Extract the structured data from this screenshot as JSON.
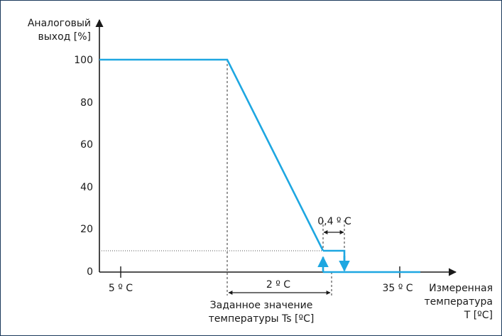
{
  "chart_data": {
    "type": "line",
    "ylabel": [
      "Аналоговый",
      "выход [%]"
    ],
    "xlabel": [
      "Измеренная",
      "температура",
      "Т [ºC]"
    ],
    "yticks": [
      "100",
      "80",
      "60",
      "40",
      "20",
      "0"
    ],
    "ytick_values": [
      100,
      80,
      60,
      40,
      20,
      0
    ],
    "xticks": [
      "5 º C",
      "35 º C"
    ],
    "annotations": {
      "band_label": "2 º C",
      "hysteresis_label": "0,4 º C",
      "setpoint_label": [
        "Заданное значение",
        "температуры Ts [ºC]"
      ]
    },
    "ylim": [
      0,
      100
    ],
    "series": [
      {
        "color": "#1ea7e1",
        "points_pct": [
          100,
          100,
          10
        ]
      }
    ],
    "grid": false
  },
  "colors": {
    "curve": "#1ea7e1",
    "axis": "#1a1a1a",
    "frame": "#1b3a5c"
  }
}
